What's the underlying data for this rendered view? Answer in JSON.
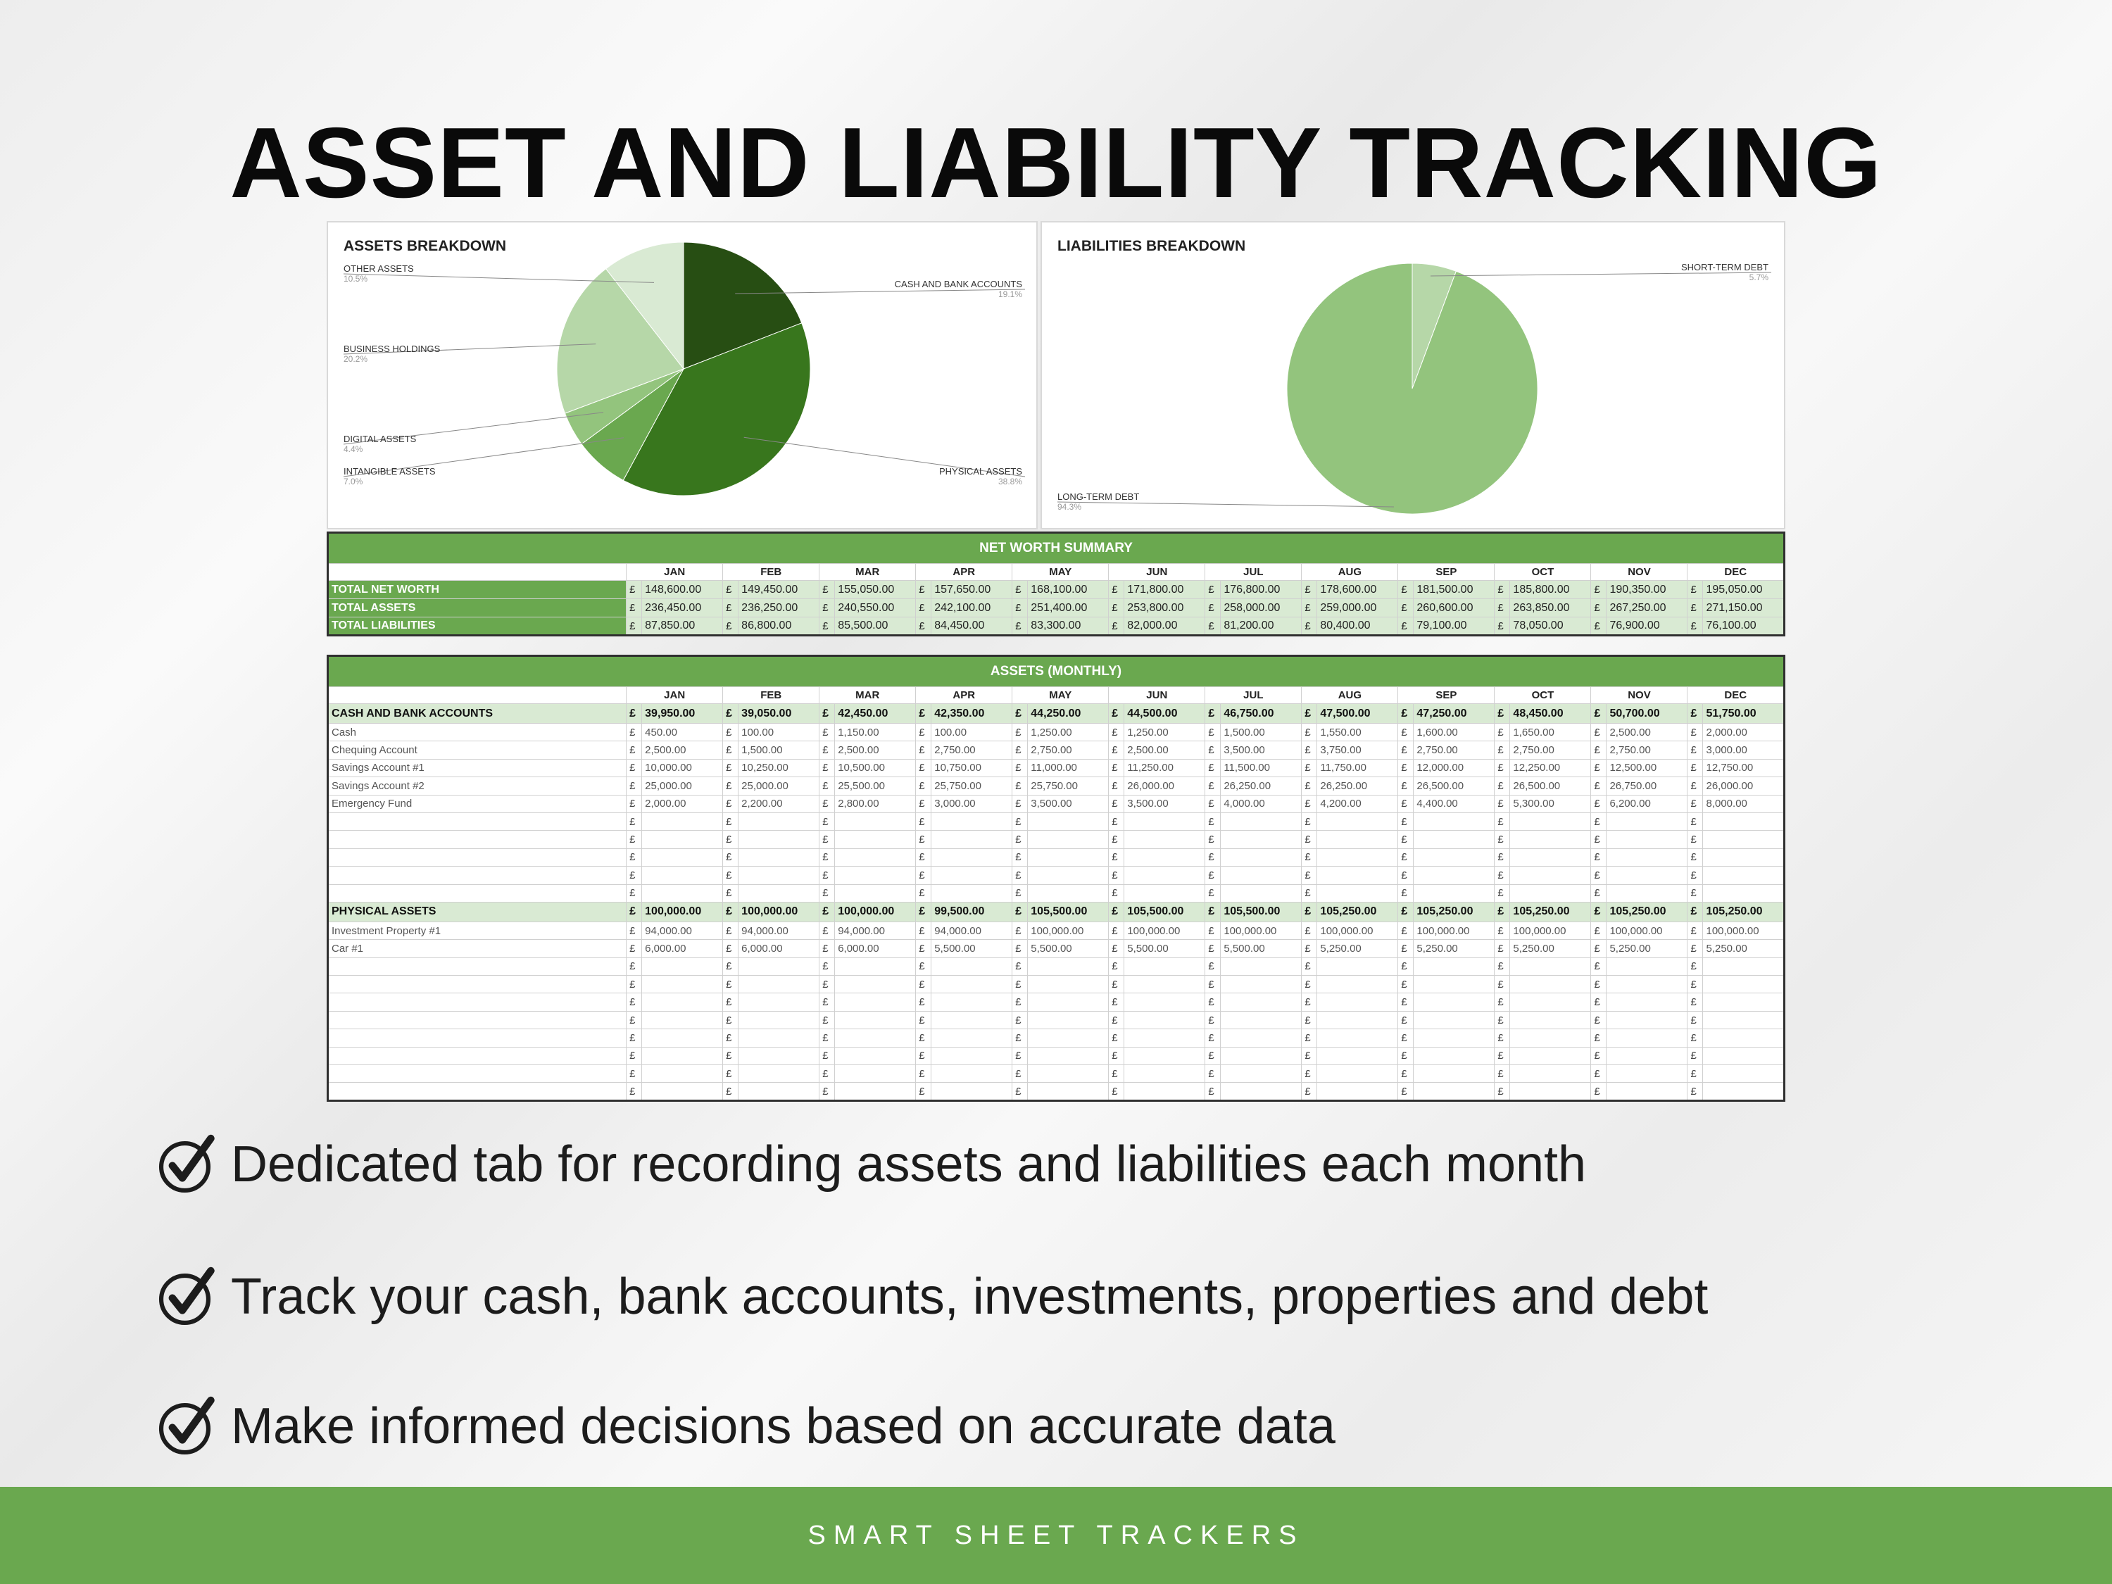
{
  "title": "ASSET AND LIABILITY TRACKING",
  "assets_chart": {
    "title": "ASSETS BREAKDOWN",
    "slices": [
      {
        "label": "CASH AND BANK ACCOUNTS",
        "pct": "19.1%",
        "value": 19.1,
        "color": "#274e13"
      },
      {
        "label": "PHYSICAL ASSETS",
        "pct": "38.8%",
        "value": 38.8,
        "color": "#38761d"
      },
      {
        "label": "INTANGIBLE ASSETS",
        "pct": "7.0%",
        "value": 7.0,
        "color": "#6aa84f"
      },
      {
        "label": "DIGITAL ASSETS",
        "pct": "4.4%",
        "value": 4.4,
        "color": "#93c47d"
      },
      {
        "label": "BUSINESS HOLDINGS",
        "pct": "20.2%",
        "value": 20.2,
        "color": "#b6d7a8"
      },
      {
        "label": "OTHER ASSETS",
        "pct": "10.5%",
        "value": 10.5,
        "color": "#d9ead3"
      }
    ]
  },
  "liabilities_chart": {
    "title": "LIABILITIES BREAKDOWN",
    "slices": [
      {
        "label": "SHORT-TERM DEBT",
        "pct": "5.7%",
        "value": 5.7,
        "color": "#b6d7a8"
      },
      {
        "label": "LONG-TERM DEBT",
        "pct": "94.3%",
        "value": 94.3,
        "color": "#93c47d"
      }
    ]
  },
  "months": [
    "JAN",
    "FEB",
    "MAR",
    "APR",
    "MAY",
    "JUN",
    "JUL",
    "AUG",
    "SEP",
    "OCT",
    "NOV",
    "DEC"
  ],
  "currency": "£",
  "net_worth": {
    "title": "NET WORTH SUMMARY",
    "rows": [
      {
        "label": "TOTAL NET WORTH",
        "values": [
          "148,600.00",
          "149,450.00",
          "155,050.00",
          "157,650.00",
          "168,100.00",
          "171,800.00",
          "176,800.00",
          "178,600.00",
          "181,500.00",
          "185,800.00",
          "190,350.00",
          "195,050.00"
        ]
      },
      {
        "label": "TOTAL ASSETS",
        "values": [
          "236,450.00",
          "236,250.00",
          "240,550.00",
          "242,100.00",
          "251,400.00",
          "253,800.00",
          "258,000.00",
          "259,000.00",
          "260,600.00",
          "263,850.00",
          "267,250.00",
          "271,150.00"
        ]
      },
      {
        "label": "TOTAL LIABILITIES",
        "values": [
          "87,850.00",
          "86,800.00",
          "85,500.00",
          "84,450.00",
          "83,300.00",
          "82,000.00",
          "81,200.00",
          "80,400.00",
          "79,100.00",
          "78,050.00",
          "76,900.00",
          "76,100.00"
        ]
      }
    ]
  },
  "assets_monthly": {
    "title": "ASSETS (MONTHLY)",
    "sections": [
      {
        "label": "CASH AND BANK ACCOUNTS",
        "totals": [
          "39,950.00",
          "39,050.00",
          "42,450.00",
          "42,350.00",
          "44,250.00",
          "44,500.00",
          "46,750.00",
          "47,500.00",
          "47,250.00",
          "48,450.00",
          "50,700.00",
          "51,750.00"
        ],
        "items": [
          {
            "label": "Cash",
            "values": [
              "450.00",
              "100.00",
              "1,150.00",
              "100.00",
              "1,250.00",
              "1,250.00",
              "1,500.00",
              "1,550.00",
              "1,600.00",
              "1,650.00",
              "2,500.00",
              "2,000.00"
            ]
          },
          {
            "label": "Chequing Account",
            "values": [
              "2,500.00",
              "1,500.00",
              "2,500.00",
              "2,750.00",
              "2,750.00",
              "2,500.00",
              "3,500.00",
              "3,750.00",
              "2,750.00",
              "2,750.00",
              "2,750.00",
              "3,000.00"
            ]
          },
          {
            "label": "Savings Account #1",
            "values": [
              "10,000.00",
              "10,250.00",
              "10,500.00",
              "10,750.00",
              "11,000.00",
              "11,250.00",
              "11,500.00",
              "11,750.00",
              "12,000.00",
              "12,250.00",
              "12,500.00",
              "12,750.00"
            ]
          },
          {
            "label": "Savings Account #2",
            "values": [
              "25,000.00",
              "25,000.00",
              "25,500.00",
              "25,750.00",
              "25,750.00",
              "26,000.00",
              "26,250.00",
              "26,250.00",
              "26,500.00",
              "26,500.00",
              "26,750.00",
              "26,000.00"
            ]
          },
          {
            "label": "Emergency Fund",
            "values": [
              "2,000.00",
              "2,200.00",
              "2,800.00",
              "3,000.00",
              "3,500.00",
              "3,500.00",
              "4,000.00",
              "4,200.00",
              "4,400.00",
              "5,300.00",
              "6,200.00",
              "8,000.00"
            ]
          },
          {
            "label": "",
            "values": [
              "",
              "",
              "",
              "",
              "",
              "",
              "",
              "",
              "",
              "",
              "",
              ""
            ]
          },
          {
            "label": "",
            "values": [
              "",
              "",
              "",
              "",
              "",
              "",
              "",
              "",
              "",
              "",
              "",
              ""
            ]
          },
          {
            "label": "",
            "values": [
              "",
              "",
              "",
              "",
              "",
              "",
              "",
              "",
              "",
              "",
              "",
              ""
            ]
          },
          {
            "label": "",
            "values": [
              "",
              "",
              "",
              "",
              "",
              "",
              "",
              "",
              "",
              "",
              "",
              ""
            ]
          },
          {
            "label": "",
            "values": [
              "",
              "",
              "",
              "",
              "",
              "",
              "",
              "",
              "",
              "",
              "",
              ""
            ]
          }
        ]
      },
      {
        "label": "PHYSICAL ASSETS",
        "totals": [
          "100,000.00",
          "100,000.00",
          "100,000.00",
          "99,500.00",
          "105,500.00",
          "105,500.00",
          "105,500.00",
          "105,250.00",
          "105,250.00",
          "105,250.00",
          "105,250.00",
          "105,250.00"
        ],
        "items": [
          {
            "label": "Investment Property #1",
            "values": [
              "94,000.00",
              "94,000.00",
              "94,000.00",
              "94,000.00",
              "100,000.00",
              "100,000.00",
              "100,000.00",
              "100,000.00",
              "100,000.00",
              "100,000.00",
              "100,000.00",
              "100,000.00"
            ]
          },
          {
            "label": "Car #1",
            "values": [
              "6,000.00",
              "6,000.00",
              "6,000.00",
              "5,500.00",
              "5,500.00",
              "5,500.00",
              "5,500.00",
              "5,250.00",
              "5,250.00",
              "5,250.00",
              "5,250.00",
              "5,250.00"
            ]
          },
          {
            "label": "",
            "values": [
              "",
              "",
              "",
              "",
              "",
              "",
              "",
              "",
              "",
              "",
              "",
              ""
            ]
          },
          {
            "label": "",
            "values": [
              "",
              "",
              "",
              "",
              "",
              "",
              "",
              "",
              "",
              "",
              "",
              ""
            ]
          },
          {
            "label": "",
            "values": [
              "",
              "",
              "",
              "",
              "",
              "",
              "",
              "",
              "",
              "",
              "",
              ""
            ]
          },
          {
            "label": "",
            "values": [
              "",
              "",
              "",
              "",
              "",
              "",
              "",
              "",
              "",
              "",
              "",
              ""
            ]
          },
          {
            "label": "",
            "values": [
              "",
              "",
              "",
              "",
              "",
              "",
              "",
              "",
              "",
              "",
              "",
              ""
            ]
          },
          {
            "label": "",
            "values": [
              "",
              "",
              "",
              "",
              "",
              "",
              "",
              "",
              "",
              "",
              "",
              ""
            ]
          },
          {
            "label": "",
            "values": [
              "",
              "",
              "",
              "",
              "",
              "",
              "",
              "",
              "",
              "",
              "",
              ""
            ]
          },
          {
            "label": "",
            "values": [
              "",
              "",
              "",
              "",
              "",
              "",
              "",
              "",
              "",
              "",
              "",
              ""
            ]
          }
        ]
      }
    ]
  },
  "features": [
    "Dedicated tab for recording assets and liabilities each month",
    "Track your cash, bank accounts, investments, properties and debt",
    "Make informed decisions based on accurate data"
  ],
  "footer": "SMART SHEET TRACKERS",
  "colors": {
    "brand_green": "#6aa84f",
    "light_green": "#d9ead3"
  }
}
